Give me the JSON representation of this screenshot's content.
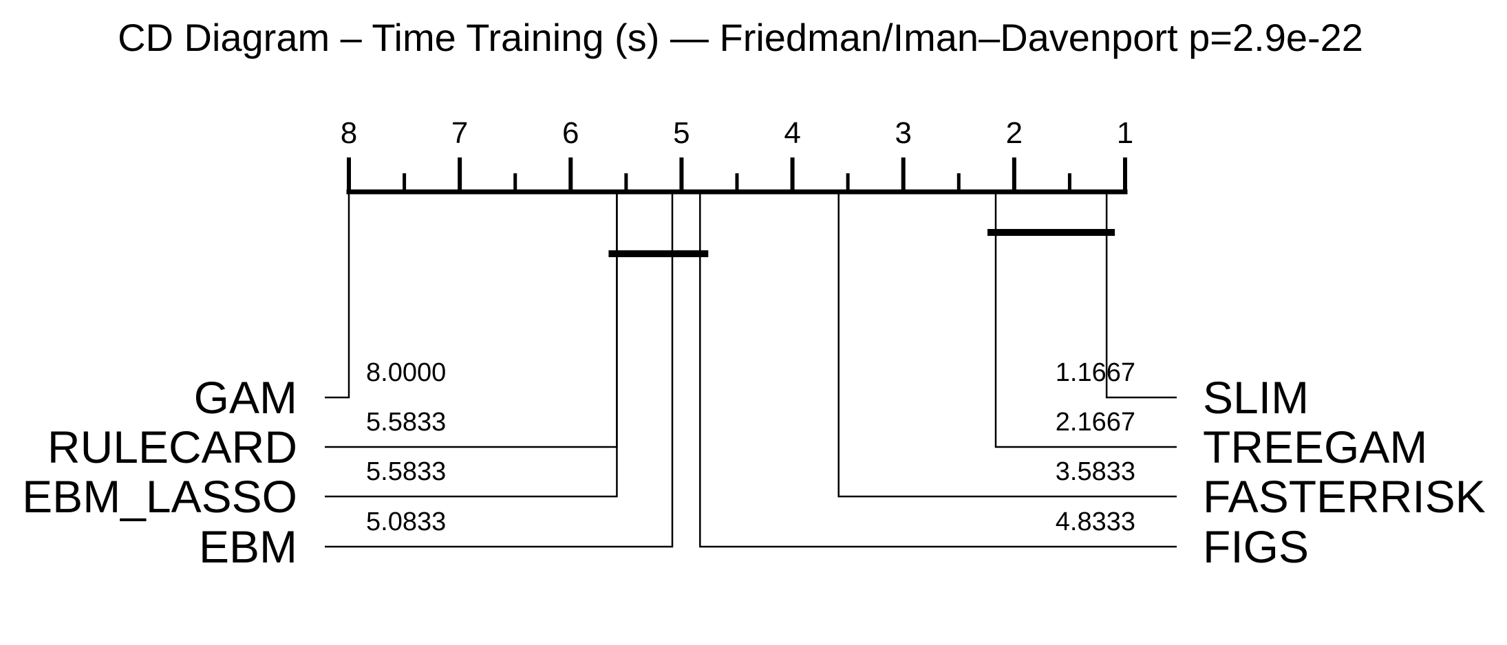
{
  "chart_data": {
    "type": "cd-diagram",
    "title": "CD Diagram – Time Training (s) — Friedman/Iman–Davenport p=2.9e-22",
    "axis": {
      "min_rank": 1,
      "max_rank": 8,
      "ticks": [
        "8",
        "7",
        "6",
        "5",
        "4",
        "3",
        "2",
        "1"
      ],
      "direction": "reversed"
    },
    "methods_left": [
      {
        "name": "GAM",
        "rank": 8.0,
        "label": "8.0000"
      },
      {
        "name": "RULECARD",
        "rank": 5.5833,
        "label": "5.5833"
      },
      {
        "name": "EBM_LASSO",
        "rank": 5.5833,
        "label": "5.5833"
      },
      {
        "name": "EBM",
        "rank": 5.0833,
        "label": "5.0833"
      }
    ],
    "methods_right": [
      {
        "name": "SLIM",
        "rank": 1.1667,
        "label": "1.1667"
      },
      {
        "name": "TREEGAM",
        "rank": 2.1667,
        "label": "2.1667"
      },
      {
        "name": "FASTERRISK",
        "rank": 3.5833,
        "label": "3.5833"
      },
      {
        "name": "FIGS",
        "rank": 4.8333,
        "label": "4.8333"
      }
    ],
    "cliques": [
      {
        "from_rank": 1.1667,
        "to_rank": 2.1667
      },
      {
        "from_rank": 4.8333,
        "to_rank": 5.5833
      }
    ]
  }
}
